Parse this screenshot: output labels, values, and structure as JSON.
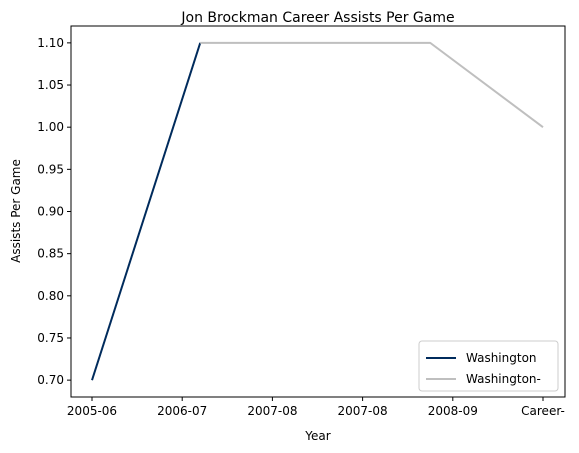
{
  "chart_data": {
    "type": "line",
    "title": "Jon Brockman Career Assists Per Game",
    "xlabel": "Year",
    "ylabel": "Assists Per Game",
    "categories": [
      "2005-06",
      "2006-07",
      "2007-08",
      "2007-08",
      "2008-09",
      "Career-"
    ],
    "yticks": [
      "0.70",
      "0.75",
      "0.80",
      "0.85",
      "0.90",
      "0.95",
      "1.00",
      "1.05",
      "1.10"
    ],
    "ylim": [
      0.68,
      1.12
    ],
    "grid": false,
    "legend_position": "bottom-right",
    "series": [
      {
        "name": "Washington",
        "color": "#002b5c",
        "points": [
          {
            "x": 0.0,
            "y": 0.7
          },
          {
            "x": 1.2,
            "y": 1.1
          }
        ]
      },
      {
        "name": "Washington-",
        "color": "#bfbfbf",
        "points": [
          {
            "x": 1.2,
            "y": 1.1
          },
          {
            "x": 3.75,
            "y": 1.1
          },
          {
            "x": 5.0,
            "y": 1.0
          }
        ]
      }
    ]
  }
}
